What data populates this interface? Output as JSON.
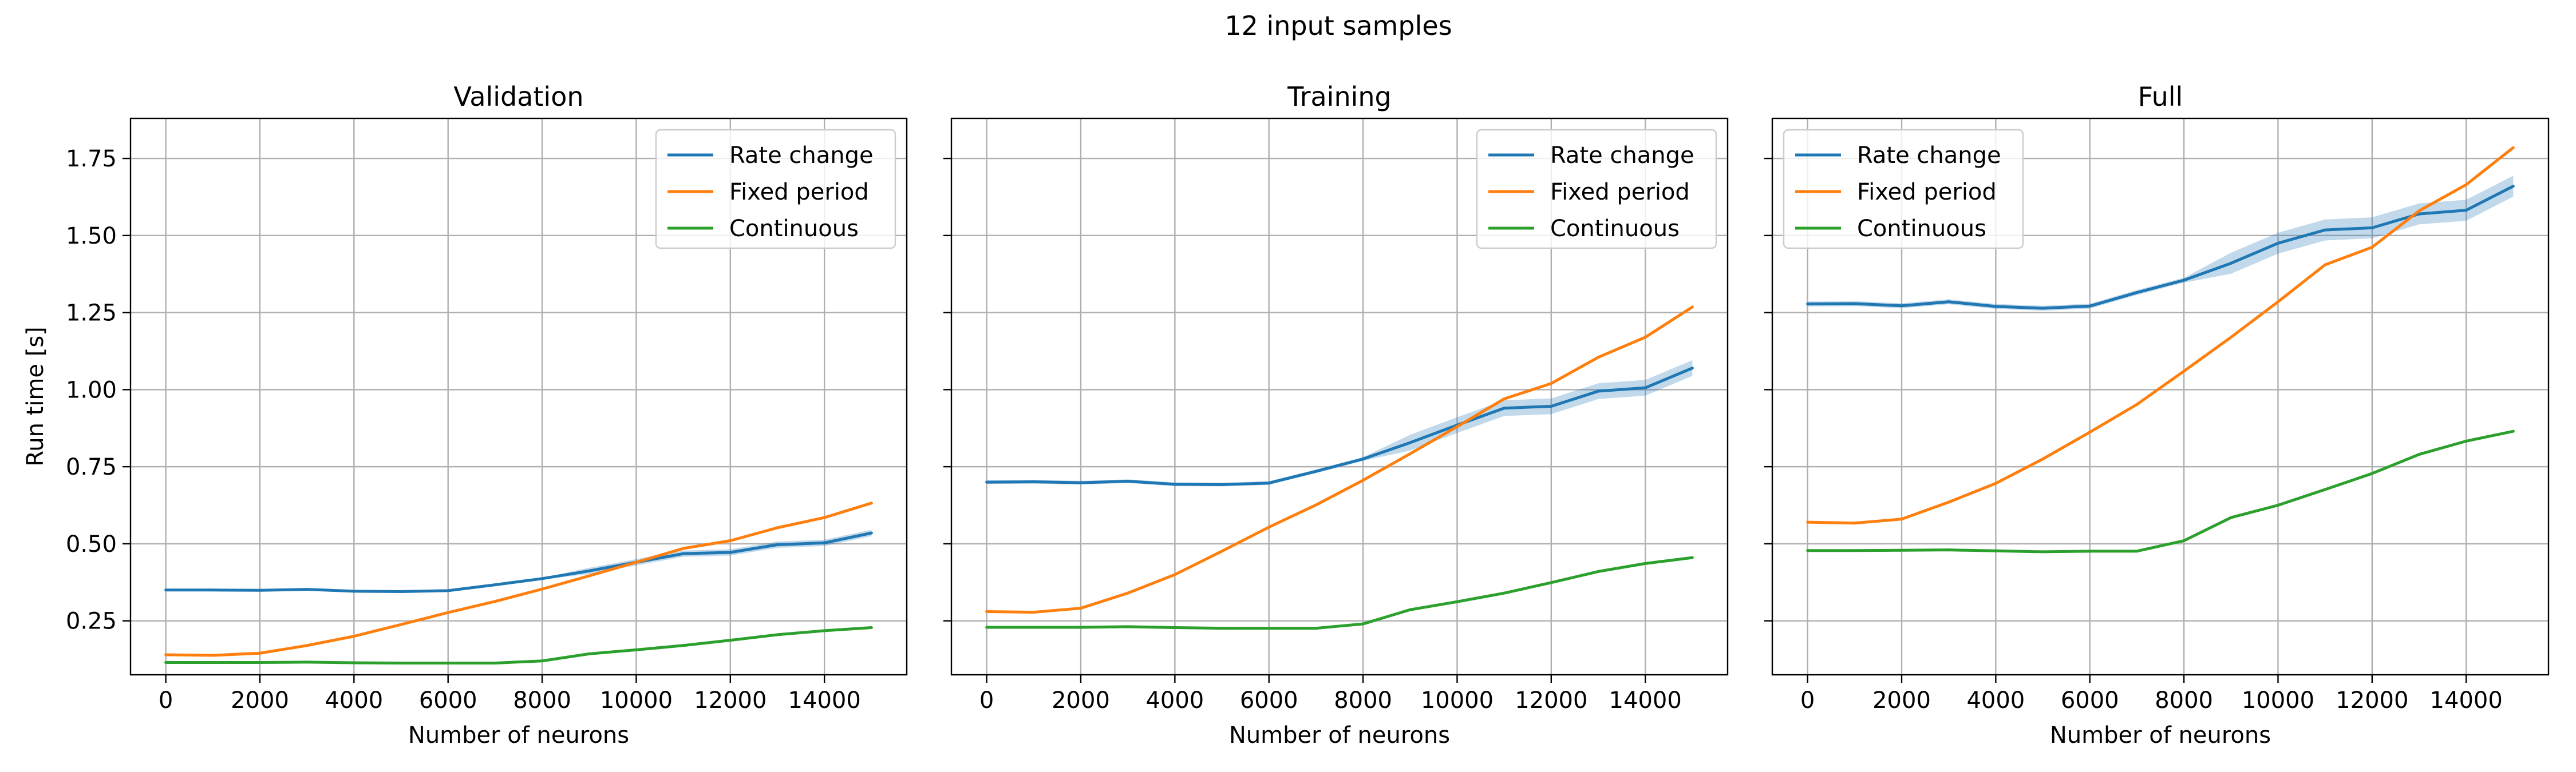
{
  "figure": {
    "suptitle": "12 input samples"
  },
  "chart_data": [
    {
      "type": "line",
      "title": "Validation",
      "xlabel": "Number of neurons",
      "ylabel": "Run time [s]",
      "xlim": [
        -750,
        15750
      ],
      "ylim": [
        0.075,
        1.88
      ],
      "xticks": [
        0,
        2000,
        4000,
        6000,
        8000,
        10000,
        12000,
        14000
      ],
      "yticks": [
        0.25,
        0.5,
        0.75,
        1.0,
        1.25,
        1.5,
        1.75
      ],
      "ytick_labels": [
        "0.25",
        "0.50",
        "0.75",
        "1.00",
        "1.25",
        "1.50",
        "1.75"
      ],
      "grid": true,
      "legend_position": "top-right",
      "x": [
        0,
        1000,
        2000,
        3000,
        4000,
        5000,
        6000,
        7000,
        8000,
        9000,
        10000,
        11000,
        12000,
        13000,
        14000,
        15000
      ],
      "series": [
        {
          "name": "Rate change",
          "color": "#1f77b4",
          "values": [
            0.35,
            0.35,
            0.349,
            0.352,
            0.346,
            0.345,
            0.348,
            0.367,
            0.387,
            0.412,
            0.44,
            0.468,
            0.472,
            0.497,
            0.503,
            0.535
          ],
          "band": 0.006
        },
        {
          "name": "Fixed period",
          "color": "#ff7f0e",
          "values": [
            0.14,
            0.138,
            0.145,
            0.17,
            0.2,
            0.238,
            0.277,
            0.313,
            0.353,
            0.396,
            0.44,
            0.485,
            0.51,
            0.552,
            0.585,
            0.632
          ]
        },
        {
          "name": "Continuous",
          "color": "#2ca02c",
          "values": [
            0.115,
            0.115,
            0.115,
            0.116,
            0.114,
            0.113,
            0.113,
            0.113,
            0.12,
            0.143,
            0.156,
            0.17,
            0.187,
            0.205,
            0.218,
            0.228
          ]
        }
      ]
    },
    {
      "type": "line",
      "title": "Training",
      "xlabel": "Number of neurons",
      "ylabel": "",
      "xlim": [
        -750,
        15750
      ],
      "ylim": [
        0.075,
        1.88
      ],
      "xticks": [
        0,
        2000,
        4000,
        6000,
        8000,
        10000,
        12000,
        14000
      ],
      "yticks": [
        0.25,
        0.5,
        0.75,
        1.0,
        1.25,
        1.5,
        1.75
      ],
      "ytick_labels": [
        "",
        "",
        "",
        "",
        "",
        "",
        ""
      ],
      "grid": true,
      "legend_position": "top-right",
      "x": [
        0,
        1000,
        2000,
        3000,
        4000,
        5000,
        6000,
        7000,
        8000,
        9000,
        10000,
        11000,
        12000,
        13000,
        14000,
        15000
      ],
      "series": [
        {
          "name": "Rate change",
          "color": "#1f77b4",
          "values": [
            0.7,
            0.701,
            0.698,
            0.703,
            0.693,
            0.692,
            0.697,
            0.735,
            0.775,
            0.828,
            0.885,
            0.94,
            0.946,
            0.995,
            1.006,
            1.07
          ],
          "band": 0.015
        },
        {
          "name": "Fixed period",
          "color": "#ff7f0e",
          "values": [
            0.28,
            0.278,
            0.291,
            0.34,
            0.4,
            0.476,
            0.554,
            0.626,
            0.706,
            0.792,
            0.88,
            0.97,
            1.02,
            1.105,
            1.17,
            1.268
          ]
        },
        {
          "name": "Continuous",
          "color": "#2ca02c",
          "values": [
            0.229,
            0.229,
            0.229,
            0.231,
            0.228,
            0.226,
            0.226,
            0.226,
            0.24,
            0.286,
            0.312,
            0.34,
            0.374,
            0.41,
            0.436,
            0.455
          ]
        }
      ]
    },
    {
      "type": "line",
      "title": "Full",
      "xlabel": "Number of neurons",
      "ylabel": "",
      "xlim": [
        -750,
        15750
      ],
      "ylim": [
        0.075,
        1.88
      ],
      "xticks": [
        0,
        2000,
        4000,
        6000,
        8000,
        10000,
        12000,
        14000
      ],
      "yticks": [
        0.25,
        0.5,
        0.75,
        1.0,
        1.25,
        1.5,
        1.75
      ],
      "ytick_labels": [
        "",
        "",
        "",
        "",
        "",
        "",
        ""
      ],
      "grid": true,
      "legend_position": "top-left",
      "x": [
        0,
        1000,
        2000,
        3000,
        4000,
        5000,
        6000,
        7000,
        8000,
        9000,
        10000,
        11000,
        12000,
        13000,
        14000,
        15000
      ],
      "series": [
        {
          "name": "Rate change",
          "color": "#1f77b4",
          "values": [
            1.278,
            1.279,
            1.272,
            1.285,
            1.27,
            1.264,
            1.271,
            1.315,
            1.355,
            1.41,
            1.475,
            1.518,
            1.525,
            1.57,
            1.582,
            1.66
          ],
          "band": 0.02
        },
        {
          "name": "Fixed period",
          "color": "#ff7f0e",
          "values": [
            0.57,
            0.567,
            0.58,
            0.635,
            0.696,
            0.775,
            0.862,
            0.952,
            1.06,
            1.17,
            1.285,
            1.405,
            1.462,
            1.58,
            1.665,
            1.785
          ]
        },
        {
          "name": "Continuous",
          "color": "#2ca02c",
          "values": [
            0.478,
            0.478,
            0.479,
            0.48,
            0.477,
            0.474,
            0.476,
            0.476,
            0.51,
            0.585,
            0.625,
            0.676,
            0.728,
            0.79,
            0.833,
            0.865
          ]
        }
      ]
    }
  ]
}
